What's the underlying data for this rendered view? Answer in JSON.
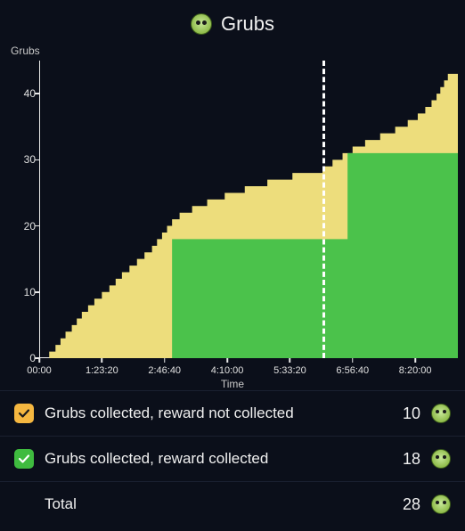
{
  "title": "Grubs",
  "chart": {
    "type": "area-step",
    "ylabel": "Grubs",
    "xlabel": "Time",
    "ylim": [
      0,
      45
    ],
    "yticks": [
      0,
      10,
      20,
      30,
      40
    ],
    "x_range_seconds": [
      0,
      33400
    ],
    "xticks": [
      {
        "seconds": 0,
        "label": "00:00"
      },
      {
        "seconds": 5000,
        "label": "1:23:20"
      },
      {
        "seconds": 10000,
        "label": "2:46:40"
      },
      {
        "seconds": 15000,
        "label": "4:10:00"
      },
      {
        "seconds": 20000,
        "label": "5:33:20"
      },
      {
        "seconds": 25000,
        "label": "6:56:40"
      },
      {
        "seconds": 30000,
        "label": "8:20:00"
      }
    ],
    "marker_seconds": 22600,
    "series_yellow": {
      "label": "Grubs collected, reward not collected",
      "color": "#eddd7c",
      "points": [
        {
          "t": 0,
          "v": 0
        },
        {
          "t": 800,
          "v": 1
        },
        {
          "t": 1300,
          "v": 2
        },
        {
          "t": 1700,
          "v": 3
        },
        {
          "t": 2100,
          "v": 4
        },
        {
          "t": 2600,
          "v": 5
        },
        {
          "t": 3000,
          "v": 6
        },
        {
          "t": 3400,
          "v": 7
        },
        {
          "t": 3900,
          "v": 8
        },
        {
          "t": 4400,
          "v": 9
        },
        {
          "t": 5000,
          "v": 10
        },
        {
          "t": 5600,
          "v": 11
        },
        {
          "t": 6100,
          "v": 12
        },
        {
          "t": 6600,
          "v": 13
        },
        {
          "t": 7200,
          "v": 14
        },
        {
          "t": 7800,
          "v": 15
        },
        {
          "t": 8400,
          "v": 16
        },
        {
          "t": 9000,
          "v": 17
        },
        {
          "t": 9400,
          "v": 18
        },
        {
          "t": 9800,
          "v": 19
        },
        {
          "t": 10200,
          "v": 20
        },
        {
          "t": 10600,
          "v": 21
        },
        {
          "t": 11200,
          "v": 22
        },
        {
          "t": 12200,
          "v": 23
        },
        {
          "t": 13400,
          "v": 24
        },
        {
          "t": 14800,
          "v": 25
        },
        {
          "t": 16400,
          "v": 26
        },
        {
          "t": 18200,
          "v": 27
        },
        {
          "t": 20200,
          "v": 28
        },
        {
          "t": 22600,
          "v": 29
        },
        {
          "t": 23400,
          "v": 30
        },
        {
          "t": 24200,
          "v": 31
        },
        {
          "t": 25000,
          "v": 32
        },
        {
          "t": 26000,
          "v": 33
        },
        {
          "t": 27200,
          "v": 34
        },
        {
          "t": 28400,
          "v": 35
        },
        {
          "t": 29400,
          "v": 36
        },
        {
          "t": 30200,
          "v": 37
        },
        {
          "t": 30800,
          "v": 38
        },
        {
          "t": 31300,
          "v": 39
        },
        {
          "t": 31700,
          "v": 40
        },
        {
          "t": 32000,
          "v": 41
        },
        {
          "t": 32300,
          "v": 42
        },
        {
          "t": 32600,
          "v": 43
        }
      ]
    },
    "series_green": {
      "label": "Grubs collected, reward collected",
      "color": "#4bc24b",
      "points": [
        {
          "t": 0,
          "v": 0
        },
        {
          "t": 10600,
          "v": 18
        },
        {
          "t": 24600,
          "v": 31
        }
      ]
    },
    "background_color": "#0b0f1a",
    "axis_color": "#e8e8e8",
    "tick_fontsize": 12,
    "label_fontsize": 12
  },
  "legend": {
    "row_not_collected": {
      "label": "Grubs collected, reward not collected",
      "value": "10",
      "swatch_color": "#f5b740"
    },
    "row_collected": {
      "label": "Grubs collected, reward collected",
      "value": "18",
      "swatch_color": "#3fbb3f"
    },
    "row_total": {
      "label": "Total",
      "value": "28"
    }
  }
}
